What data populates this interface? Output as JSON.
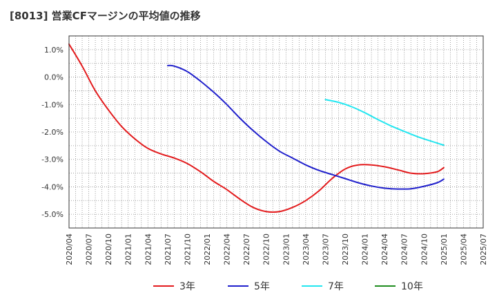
{
  "title": "[8013]  営業CFマージンの平均値の推移",
  "chart_data": {
    "type": "line",
    "title": "[8013]  営業CFマージンの平均値の推移",
    "xlabel": "",
    "ylabel": "",
    "ylim": [
      -5.5,
      1.5
    ],
    "x_ticks": [
      "2020/04",
      "2020/07",
      "2020/10",
      "2021/01",
      "2021/04",
      "2021/07",
      "2021/10",
      "2022/01",
      "2022/04",
      "2022/07",
      "2022/10",
      "2023/01",
      "2023/04",
      "2023/07",
      "2023/10",
      "2024/01",
      "2024/04",
      "2024/07",
      "2024/10",
      "2025/01",
      "2025/04",
      "2025/07"
    ],
    "y_ticks": [
      "1.0%",
      "0.0%",
      "-1.0%",
      "-2.0%",
      "-3.0%",
      "-4.0%",
      "-5.0%"
    ],
    "y_tick_values": [
      1.0,
      0.0,
      -1.0,
      -2.0,
      -3.0,
      -4.0,
      -5.0
    ],
    "grid": true,
    "legend_position": "bottom",
    "series": [
      {
        "name": "3年",
        "color": "#e31a1c",
        "points": [
          [
            "2020/04",
            1.2
          ],
          [
            "2020/06",
            0.4
          ],
          [
            "2020/08",
            -0.5
          ],
          [
            "2020/10",
            -1.2
          ],
          [
            "2020/12",
            -1.8
          ],
          [
            "2021/02",
            -2.25
          ],
          [
            "2021/04",
            -2.6
          ],
          [
            "2021/06",
            -2.8
          ],
          [
            "2021/08",
            -2.95
          ],
          [
            "2021/10",
            -3.15
          ],
          [
            "2021/12",
            -3.45
          ],
          [
            "2022/02",
            -3.8
          ],
          [
            "2022/04",
            -4.1
          ],
          [
            "2022/06",
            -4.45
          ],
          [
            "2022/08",
            -4.75
          ],
          [
            "2022/10",
            -4.9
          ],
          [
            "2022/12",
            -4.9
          ],
          [
            "2023/02",
            -4.75
          ],
          [
            "2023/04",
            -4.5
          ],
          [
            "2023/06",
            -4.15
          ],
          [
            "2023/08",
            -3.7
          ],
          [
            "2023/10",
            -3.35
          ],
          [
            "2023/12",
            -3.2
          ],
          [
            "2024/02",
            -3.2
          ],
          [
            "2024/04",
            -3.27
          ],
          [
            "2024/06",
            -3.38
          ],
          [
            "2024/08",
            -3.5
          ],
          [
            "2024/10",
            -3.52
          ],
          [
            "2024/12",
            -3.45
          ],
          [
            "2025/01",
            -3.3
          ]
        ]
      },
      {
        "name": "5年",
        "color": "#1f1fcc",
        "points": [
          [
            "2021/07",
            0.42
          ],
          [
            "2021/08",
            0.4
          ],
          [
            "2021/10",
            0.2
          ],
          [
            "2021/12",
            -0.15
          ],
          [
            "2022/02",
            -0.55
          ],
          [
            "2022/04",
            -1.0
          ],
          [
            "2022/06",
            -1.5
          ],
          [
            "2022/08",
            -1.95
          ],
          [
            "2022/10",
            -2.35
          ],
          [
            "2022/12",
            -2.7
          ],
          [
            "2023/02",
            -2.95
          ],
          [
            "2023/04",
            -3.2
          ],
          [
            "2023/06",
            -3.4
          ],
          [
            "2023/08",
            -3.55
          ],
          [
            "2023/10",
            -3.7
          ],
          [
            "2023/12",
            -3.85
          ],
          [
            "2024/02",
            -3.97
          ],
          [
            "2024/04",
            -4.05
          ],
          [
            "2024/06",
            -4.08
          ],
          [
            "2024/08",
            -4.07
          ],
          [
            "2024/10",
            -3.98
          ],
          [
            "2024/12",
            -3.85
          ],
          [
            "2025/01",
            -3.72
          ]
        ]
      },
      {
        "name": "7年",
        "color": "#22e6f0",
        "points": [
          [
            "2023/07",
            -0.82
          ],
          [
            "2023/09",
            -0.92
          ],
          [
            "2023/11",
            -1.08
          ],
          [
            "2024/01",
            -1.3
          ],
          [
            "2024/03",
            -1.55
          ],
          [
            "2024/05",
            -1.78
          ],
          [
            "2024/07",
            -1.98
          ],
          [
            "2024/09",
            -2.17
          ],
          [
            "2024/11",
            -2.33
          ],
          [
            "2025/01",
            -2.48
          ]
        ]
      },
      {
        "name": "10年",
        "color": "#1e8c1e",
        "points": []
      }
    ]
  }
}
